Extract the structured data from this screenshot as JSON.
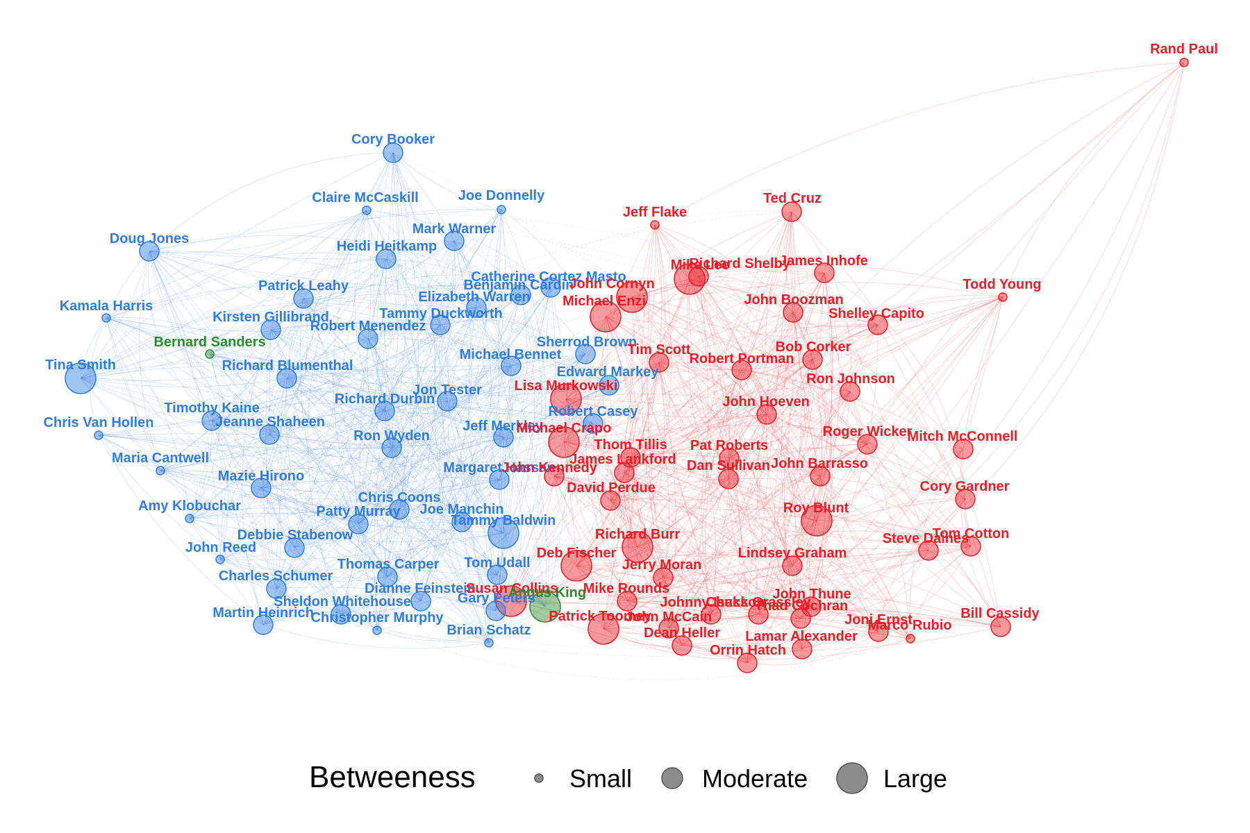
{
  "colors": {
    "democrat": "#2f7de1",
    "democrat_edge": "#6fa4ee",
    "republican": "#ee1c25",
    "republican_edge": "#f26a6a",
    "independent": "#2e8b2e",
    "legend_node": "#8c8c8c"
  },
  "legend": {
    "title": "Betweeness",
    "items": [
      {
        "label": "Small",
        "level": "small"
      },
      {
        "label": "Moderate",
        "level": "moderate"
      },
      {
        "label": "Large",
        "level": "large"
      }
    ]
  },
  "nodes": [
    {
      "name": "Rand Paul",
      "party": "R",
      "betweenness": "small"
    },
    {
      "name": "Cory Booker",
      "party": "D",
      "betweenness": "moderate"
    },
    {
      "name": "Claire McCaskill",
      "party": "D",
      "betweenness": "small"
    },
    {
      "name": "Joe Donnelly",
      "party": "D",
      "betweenness": "small"
    },
    {
      "name": "Jeff Flake",
      "party": "R",
      "betweenness": "small"
    },
    {
      "name": "Ted Cruz",
      "party": "R",
      "betweenness": "moderate"
    },
    {
      "name": "Doug Jones",
      "party": "D",
      "betweenness": "moderate"
    },
    {
      "name": "Mark Warner",
      "party": "D",
      "betweenness": "moderate"
    },
    {
      "name": "Heidi Heitkamp",
      "party": "D",
      "betweenness": "moderate"
    },
    {
      "name": "Mike Lee",
      "party": "R",
      "betweenness": "moderate"
    },
    {
      "name": "Richard Shelby",
      "party": "R",
      "betweenness": "large"
    },
    {
      "name": "James Inhofe",
      "party": "R",
      "betweenness": "moderate"
    },
    {
      "name": "Catherine Cortez Masto",
      "party": "D",
      "betweenness": "moderate"
    },
    {
      "name": "Benjamin Cardin",
      "party": "D",
      "betweenness": "moderate"
    },
    {
      "name": "John Cornyn",
      "party": "R",
      "betweenness": "large"
    },
    {
      "name": "Todd Young",
      "party": "R",
      "betweenness": "small"
    },
    {
      "name": "Patrick Leahy",
      "party": "D",
      "betweenness": "moderate"
    },
    {
      "name": "Elizabeth Warren",
      "party": "D",
      "betweenness": "moderate"
    },
    {
      "name": "Michael Enzi",
      "party": "R",
      "betweenness": "large"
    },
    {
      "name": "John Boozman",
      "party": "R",
      "betweenness": "moderate"
    },
    {
      "name": "Kamala Harris",
      "party": "D",
      "betweenness": "small"
    },
    {
      "name": "Tammy Duckworth",
      "party": "D",
      "betweenness": "moderate"
    },
    {
      "name": "Shelley Capito",
      "party": "R",
      "betweenness": "moderate"
    },
    {
      "name": "Kirsten Gillibrand",
      "party": "D",
      "betweenness": "moderate"
    },
    {
      "name": "Robert Menendez",
      "party": "D",
      "betweenness": "moderate"
    },
    {
      "name": "Bernard Sanders",
      "party": "I",
      "betweenness": "small"
    },
    {
      "name": "Sherrod Brown",
      "party": "D",
      "betweenness": "moderate"
    },
    {
      "name": "Bob Corker",
      "party": "R",
      "betweenness": "moderate"
    },
    {
      "name": "Tim Scott",
      "party": "R",
      "betweenness": "moderate"
    },
    {
      "name": "Michael Bennet",
      "party": "D",
      "betweenness": "moderate"
    },
    {
      "name": "Robert Portman",
      "party": "R",
      "betweenness": "moderate"
    },
    {
      "name": "Tina Smith",
      "party": "D",
      "betweenness": "large"
    },
    {
      "name": "Richard Blumenthal",
      "party": "D",
      "betweenness": "moderate"
    },
    {
      "name": "Edward Markey",
      "party": "D",
      "betweenness": "moderate"
    },
    {
      "name": "Ron Johnson",
      "party": "R",
      "betweenness": "moderate"
    },
    {
      "name": "Jon Tester",
      "party": "D",
      "betweenness": "moderate"
    },
    {
      "name": "Lisa Murkowski",
      "party": "R",
      "betweenness": "large"
    },
    {
      "name": "Richard Durbin",
      "party": "D",
      "betweenness": "moderate"
    },
    {
      "name": "John Hoeven",
      "party": "R",
      "betweenness": "moderate"
    },
    {
      "name": "Timothy Kaine",
      "party": "D",
      "betweenness": "moderate"
    },
    {
      "name": "Robert Casey",
      "party": "D",
      "betweenness": "moderate"
    },
    {
      "name": "Chris Van Hollen",
      "party": "D",
      "betweenness": "small"
    },
    {
      "name": "Jeanne Shaheen",
      "party": "D",
      "betweenness": "moderate"
    },
    {
      "name": "Jeff Merkley",
      "party": "D",
      "betweenness": "moderate"
    },
    {
      "name": "Michael Crapo",
      "party": "R",
      "betweenness": "large"
    },
    {
      "name": "Roger Wicker",
      "party": "R",
      "betweenness": "moderate"
    },
    {
      "name": "Mitch McConnell",
      "party": "R",
      "betweenness": "moderate"
    },
    {
      "name": "Ron Wyden",
      "party": "D",
      "betweenness": "moderate"
    },
    {
      "name": "Thom Tillis",
      "party": "R",
      "betweenness": "moderate"
    },
    {
      "name": "Pat Roberts",
      "party": "R",
      "betweenness": "moderate"
    },
    {
      "name": "Maria Cantwell",
      "party": "D",
      "betweenness": "small"
    },
    {
      "name": "Margaret Hassan",
      "party": "D",
      "betweenness": "moderate"
    },
    {
      "name": "John Kennedy",
      "party": "R",
      "betweenness": "moderate"
    },
    {
      "name": "James Lankford",
      "party": "R",
      "betweenness": "moderate"
    },
    {
      "name": "Dan Sullivan",
      "party": "R",
      "betweenness": "moderate"
    },
    {
      "name": "John Barrasso",
      "party": "R",
      "betweenness": "moderate"
    },
    {
      "name": "Mazie Hirono",
      "party": "D",
      "betweenness": "moderate"
    },
    {
      "name": "David Perdue",
      "party": "R",
      "betweenness": "moderate"
    },
    {
      "name": "Cory Gardner",
      "party": "R",
      "betweenness": "moderate"
    },
    {
      "name": "Chris Coons",
      "party": "D",
      "betweenness": "moderate"
    },
    {
      "name": "Amy Klobuchar",
      "party": "D",
      "betweenness": "small"
    },
    {
      "name": "Patty Murray",
      "party": "D",
      "betweenness": "moderate"
    },
    {
      "name": "Joe Manchin",
      "party": "D",
      "betweenness": "moderate"
    },
    {
      "name": "Roy Blunt",
      "party": "R",
      "betweenness": "large"
    },
    {
      "name": "Tammy Baldwin",
      "party": "D",
      "betweenness": "large"
    },
    {
      "name": "Debbie Stabenow",
      "party": "D",
      "betweenness": "moderate"
    },
    {
      "name": "Richard Burr",
      "party": "R",
      "betweenness": "large"
    },
    {
      "name": "Tom Cotton",
      "party": "R",
      "betweenness": "moderate"
    },
    {
      "name": "John Reed",
      "party": "D",
      "betweenness": "small"
    },
    {
      "name": "Steve Daines",
      "party": "R",
      "betweenness": "moderate"
    },
    {
      "name": "Deb Fischer",
      "party": "R",
      "betweenness": "large"
    },
    {
      "name": "Lindsey Graham",
      "party": "R",
      "betweenness": "moderate"
    },
    {
      "name": "Thomas Carper",
      "party": "D",
      "betweenness": "moderate"
    },
    {
      "name": "Tom Udall",
      "party": "D",
      "betweenness": "moderate"
    },
    {
      "name": "Jerry Moran",
      "party": "R",
      "betweenness": "moderate"
    },
    {
      "name": "Charles Schumer",
      "party": "D",
      "betweenness": "moderate"
    },
    {
      "name": "Dianne Feinstein",
      "party": "D",
      "betweenness": "moderate"
    },
    {
      "name": "Susan Collins",
      "party": "R",
      "betweenness": "large"
    },
    {
      "name": "Angus King",
      "party": "I",
      "betweenness": "large"
    },
    {
      "name": "Mike Rounds",
      "party": "R",
      "betweenness": "moderate"
    },
    {
      "name": "Sheldon Whitehouse",
      "party": "D",
      "betweenness": "moderate"
    },
    {
      "name": "Gary Peters",
      "party": "D",
      "betweenness": "moderate"
    },
    {
      "name": "John Thune",
      "party": "R",
      "betweenness": "moderate"
    },
    {
      "name": "Johnny Isakson",
      "party": "R",
      "betweenness": "moderate"
    },
    {
      "name": "Chuck Grassley",
      "party": "R",
      "betweenness": "moderate"
    },
    {
      "name": "Thad Cochran",
      "party": "R",
      "betweenness": "moderate"
    },
    {
      "name": "Martin Heinrich",
      "party": "D",
      "betweenness": "moderate"
    },
    {
      "name": "Christopher Murphy",
      "party": "D",
      "betweenness": "small"
    },
    {
      "name": "Patrick Toomey",
      "party": "R",
      "betweenness": "large"
    },
    {
      "name": "John McCain",
      "party": "R",
      "betweenness": "moderate"
    },
    {
      "name": "Joni Ernst",
      "party": "R",
      "betweenness": "moderate"
    },
    {
      "name": "Bill Cassidy",
      "party": "R",
      "betweenness": "moderate"
    },
    {
      "name": "Marco Rubio",
      "party": "R",
      "betweenness": "small"
    },
    {
      "name": "Brian Schatz",
      "party": "D",
      "betweenness": "small"
    },
    {
      "name": "Dean Heller",
      "party": "R",
      "betweenness": "moderate"
    },
    {
      "name": "Lamar Alexander",
      "party": "R",
      "betweenness": "moderate"
    },
    {
      "name": "Orrin Hatch",
      "party": "R",
      "betweenness": "moderate"
    }
  ]
}
